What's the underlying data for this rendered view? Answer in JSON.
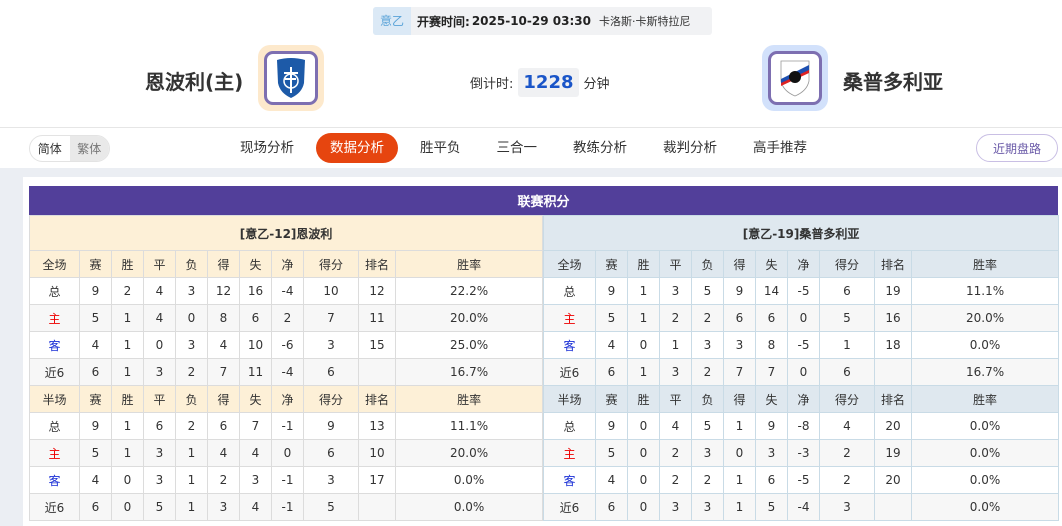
{
  "match": {
    "league": "意乙",
    "kickoff_label": "开赛时间:",
    "kickoff": "2025-10-29 03:30",
    "venue": "卡洛斯·卡斯特拉尼",
    "home": "恩波利(主)",
    "away": "桑普多利亚",
    "countdown_label": "倒计时:",
    "countdown": "1228",
    "countdown_unit": "分钟"
  },
  "lang": {
    "simplified": "简体",
    "traditional": "繁体"
  },
  "nav": [
    "现场分析",
    "数据分析",
    "胜平负",
    "三合一",
    "教练分析",
    "裁判分析",
    "高手推荐"
  ],
  "nav_active": 1,
  "recent_button": "近期盘路",
  "section_title": "联赛积分",
  "colors": {
    "accent": "#523f9a",
    "active_tab": "#e6450f",
    "home_row": "#ee0000",
    "away_row": "#1a2fd6"
  },
  "tables": [
    {
      "title": "[意乙-12]恩波利",
      "full": {
        "header": [
          "全场",
          "赛",
          "胜",
          "平",
          "负",
          "得",
          "失",
          "净",
          "得分",
          "排名",
          "胜率"
        ],
        "rows": [
          [
            "总",
            "9",
            "2",
            "4",
            "3",
            "12",
            "16",
            "-4",
            "10",
            "12",
            "22.2%"
          ],
          [
            "主",
            "5",
            "1",
            "4",
            "0",
            "8",
            "6",
            "2",
            "7",
            "11",
            "20.0%"
          ],
          [
            "客",
            "4",
            "1",
            "0",
            "3",
            "4",
            "10",
            "-6",
            "3",
            "15",
            "25.0%"
          ],
          [
            "近6",
            "6",
            "1",
            "3",
            "2",
            "7",
            "11",
            "-4",
            "6",
            "",
            "16.7%"
          ]
        ]
      },
      "half": {
        "header": [
          "半场",
          "赛",
          "胜",
          "平",
          "负",
          "得",
          "失",
          "净",
          "得分",
          "排名",
          "胜率"
        ],
        "rows": [
          [
            "总",
            "9",
            "1",
            "6",
            "2",
            "6",
            "7",
            "-1",
            "9",
            "13",
            "11.1%"
          ],
          [
            "主",
            "5",
            "1",
            "3",
            "1",
            "4",
            "4",
            "0",
            "6",
            "10",
            "20.0%"
          ],
          [
            "客",
            "4",
            "0",
            "3",
            "1",
            "2",
            "3",
            "-1",
            "3",
            "17",
            "0.0%"
          ],
          [
            "近6",
            "6",
            "0",
            "5",
            "1",
            "3",
            "4",
            "-1",
            "5",
            "",
            "0.0%"
          ]
        ]
      }
    },
    {
      "title": "[意乙-19]桑普多利亚",
      "full": {
        "header": [
          "全场",
          "赛",
          "胜",
          "平",
          "负",
          "得",
          "失",
          "净",
          "得分",
          "排名",
          "胜率"
        ],
        "rows": [
          [
            "总",
            "9",
            "1",
            "3",
            "5",
            "9",
            "14",
            "-5",
            "6",
            "19",
            "11.1%"
          ],
          [
            "主",
            "5",
            "1",
            "2",
            "2",
            "6",
            "6",
            "0",
            "5",
            "16",
            "20.0%"
          ],
          [
            "客",
            "4",
            "0",
            "1",
            "3",
            "3",
            "8",
            "-5",
            "1",
            "18",
            "0.0%"
          ],
          [
            "近6",
            "6",
            "1",
            "3",
            "2",
            "7",
            "7",
            "0",
            "6",
            "",
            "16.7%"
          ]
        ]
      },
      "half": {
        "header": [
          "半场",
          "赛",
          "胜",
          "平",
          "负",
          "得",
          "失",
          "净",
          "得分",
          "排名",
          "胜率"
        ],
        "rows": [
          [
            "总",
            "9",
            "0",
            "4",
            "5",
            "1",
            "9",
            "-8",
            "4",
            "20",
            "0.0%"
          ],
          [
            "主",
            "5",
            "0",
            "2",
            "3",
            "0",
            "3",
            "-3",
            "2",
            "19",
            "0.0%"
          ],
          [
            "客",
            "4",
            "0",
            "2",
            "2",
            "1",
            "6",
            "-5",
            "2",
            "20",
            "0.0%"
          ],
          [
            "近6",
            "6",
            "0",
            "3",
            "3",
            "1",
            "5",
            "-4",
            "3",
            "",
            "0.0%"
          ]
        ]
      }
    }
  ]
}
